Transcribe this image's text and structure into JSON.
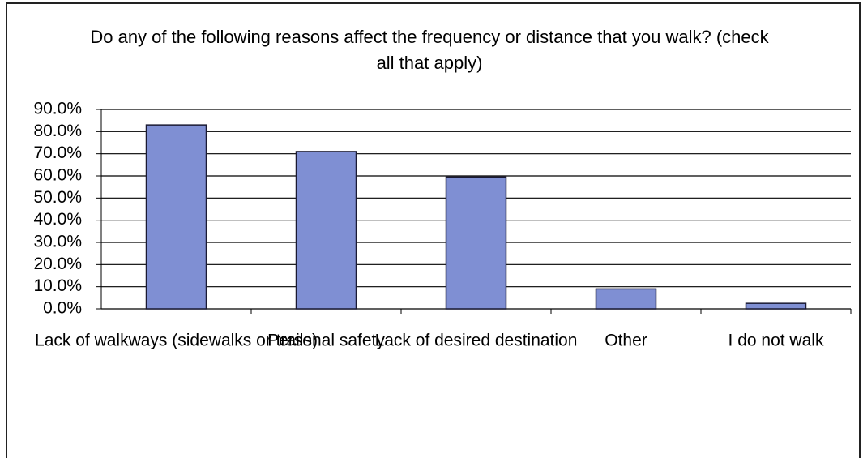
{
  "chart_data": {
    "type": "bar",
    "title": "Do any of the following reasons affect the frequency or distance that you walk? (check all that apply)",
    "categories": [
      "Lack of walkways (sidewalks or trails)",
      "Personal safety",
      "Lack of desired destination",
      "Other",
      "I do not walk"
    ],
    "values": [
      83,
      71,
      59.5,
      9,
      2.5
    ],
    "color": "#7f8fd3",
    "ylim": [
      0,
      90
    ],
    "yticks": [
      {
        "value": 0,
        "label": "0.0%"
      },
      {
        "value": 10,
        "label": "10.0%"
      },
      {
        "value": 20,
        "label": "20.0%"
      },
      {
        "value": 30,
        "label": "30.0%"
      },
      {
        "value": 40,
        "label": "40.0%"
      },
      {
        "value": 50,
        "label": "50.0%"
      },
      {
        "value": 60,
        "label": "60.0%"
      },
      {
        "value": 70,
        "label": "70.0%"
      },
      {
        "value": 80,
        "label": "80.0%"
      },
      {
        "value": 90,
        "label": "90.0%"
      }
    ],
    "grid": true
  }
}
